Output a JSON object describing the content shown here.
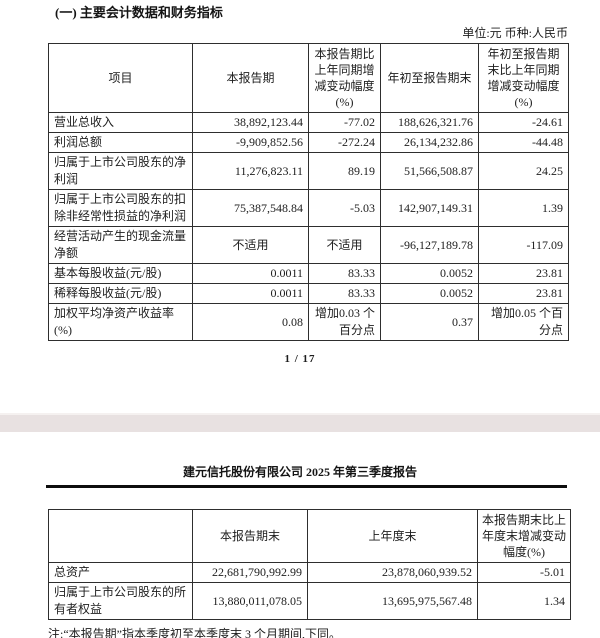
{
  "page1": {
    "section_title": "(一) 主要会计数据和财务指标",
    "unit_note": "单位:元 币种:人民币",
    "table": {
      "headers": [
        "项目",
        "本报告期",
        "本报告期比上年同期增减变动幅度(%)",
        "年初至报告期末",
        "年初至报告期末比上年同期增减变动幅度(%)"
      ],
      "rows": [
        [
          "营业总收入",
          "38,892,123.44",
          "-77.02",
          "188,626,321.76",
          "-24.61"
        ],
        [
          "利润总额",
          "-9,909,852.56",
          "-272.24",
          "26,134,232.86",
          "-44.48"
        ],
        [
          "归属于上市公司股东的净利润",
          "11,276,823.11",
          "89.19",
          "51,566,508.87",
          "24.25"
        ],
        [
          "归属于上市公司股东的扣除非经常性损益的净利润",
          "75,387,548.84",
          "-5.03",
          "142,907,149.31",
          "1.39"
        ],
        [
          "经营活动产生的现金流量净额",
          "不适用",
          "不适用",
          "-96,127,189.78",
          "-117.09"
        ],
        [
          "基本每股收益(元/股)",
          "0.0011",
          "83.33",
          "0.0052",
          "23.81"
        ],
        [
          "稀释每股收益(元/股)",
          "0.0011",
          "83.33",
          "0.0052",
          "23.81"
        ],
        [
          "加权平均净资产收益率(%)",
          "0.08",
          "增加0.03 个百分点",
          "0.37",
          "增加0.05 个百分点"
        ]
      ]
    },
    "page_number": "1 / 17"
  },
  "page2": {
    "header_title": "建元信托股份有限公司 2025 年第三季度报告",
    "table": {
      "headers": [
        "",
        "本报告期末",
        "上年度末",
        "本报告期末比上年度末增减变动幅度(%)"
      ],
      "rows": [
        [
          "总资产",
          "22,681,790,992.99",
          "23,878,060,939.52",
          "-5.01"
        ],
        [
          "归属于上市公司股东的所有者权益",
          "13,880,011,078.05",
          "13,695,975,567.48",
          "1.34"
        ]
      ]
    },
    "note": "注:“本报告期”指本季度初至本季度末 3 个月期间,下同。"
  },
  "colors": {
    "page_background": "#ffffff",
    "table_border": "#2e2e2e",
    "separator_bar": "#e8e1e1",
    "text": "#1d1d1d"
  }
}
